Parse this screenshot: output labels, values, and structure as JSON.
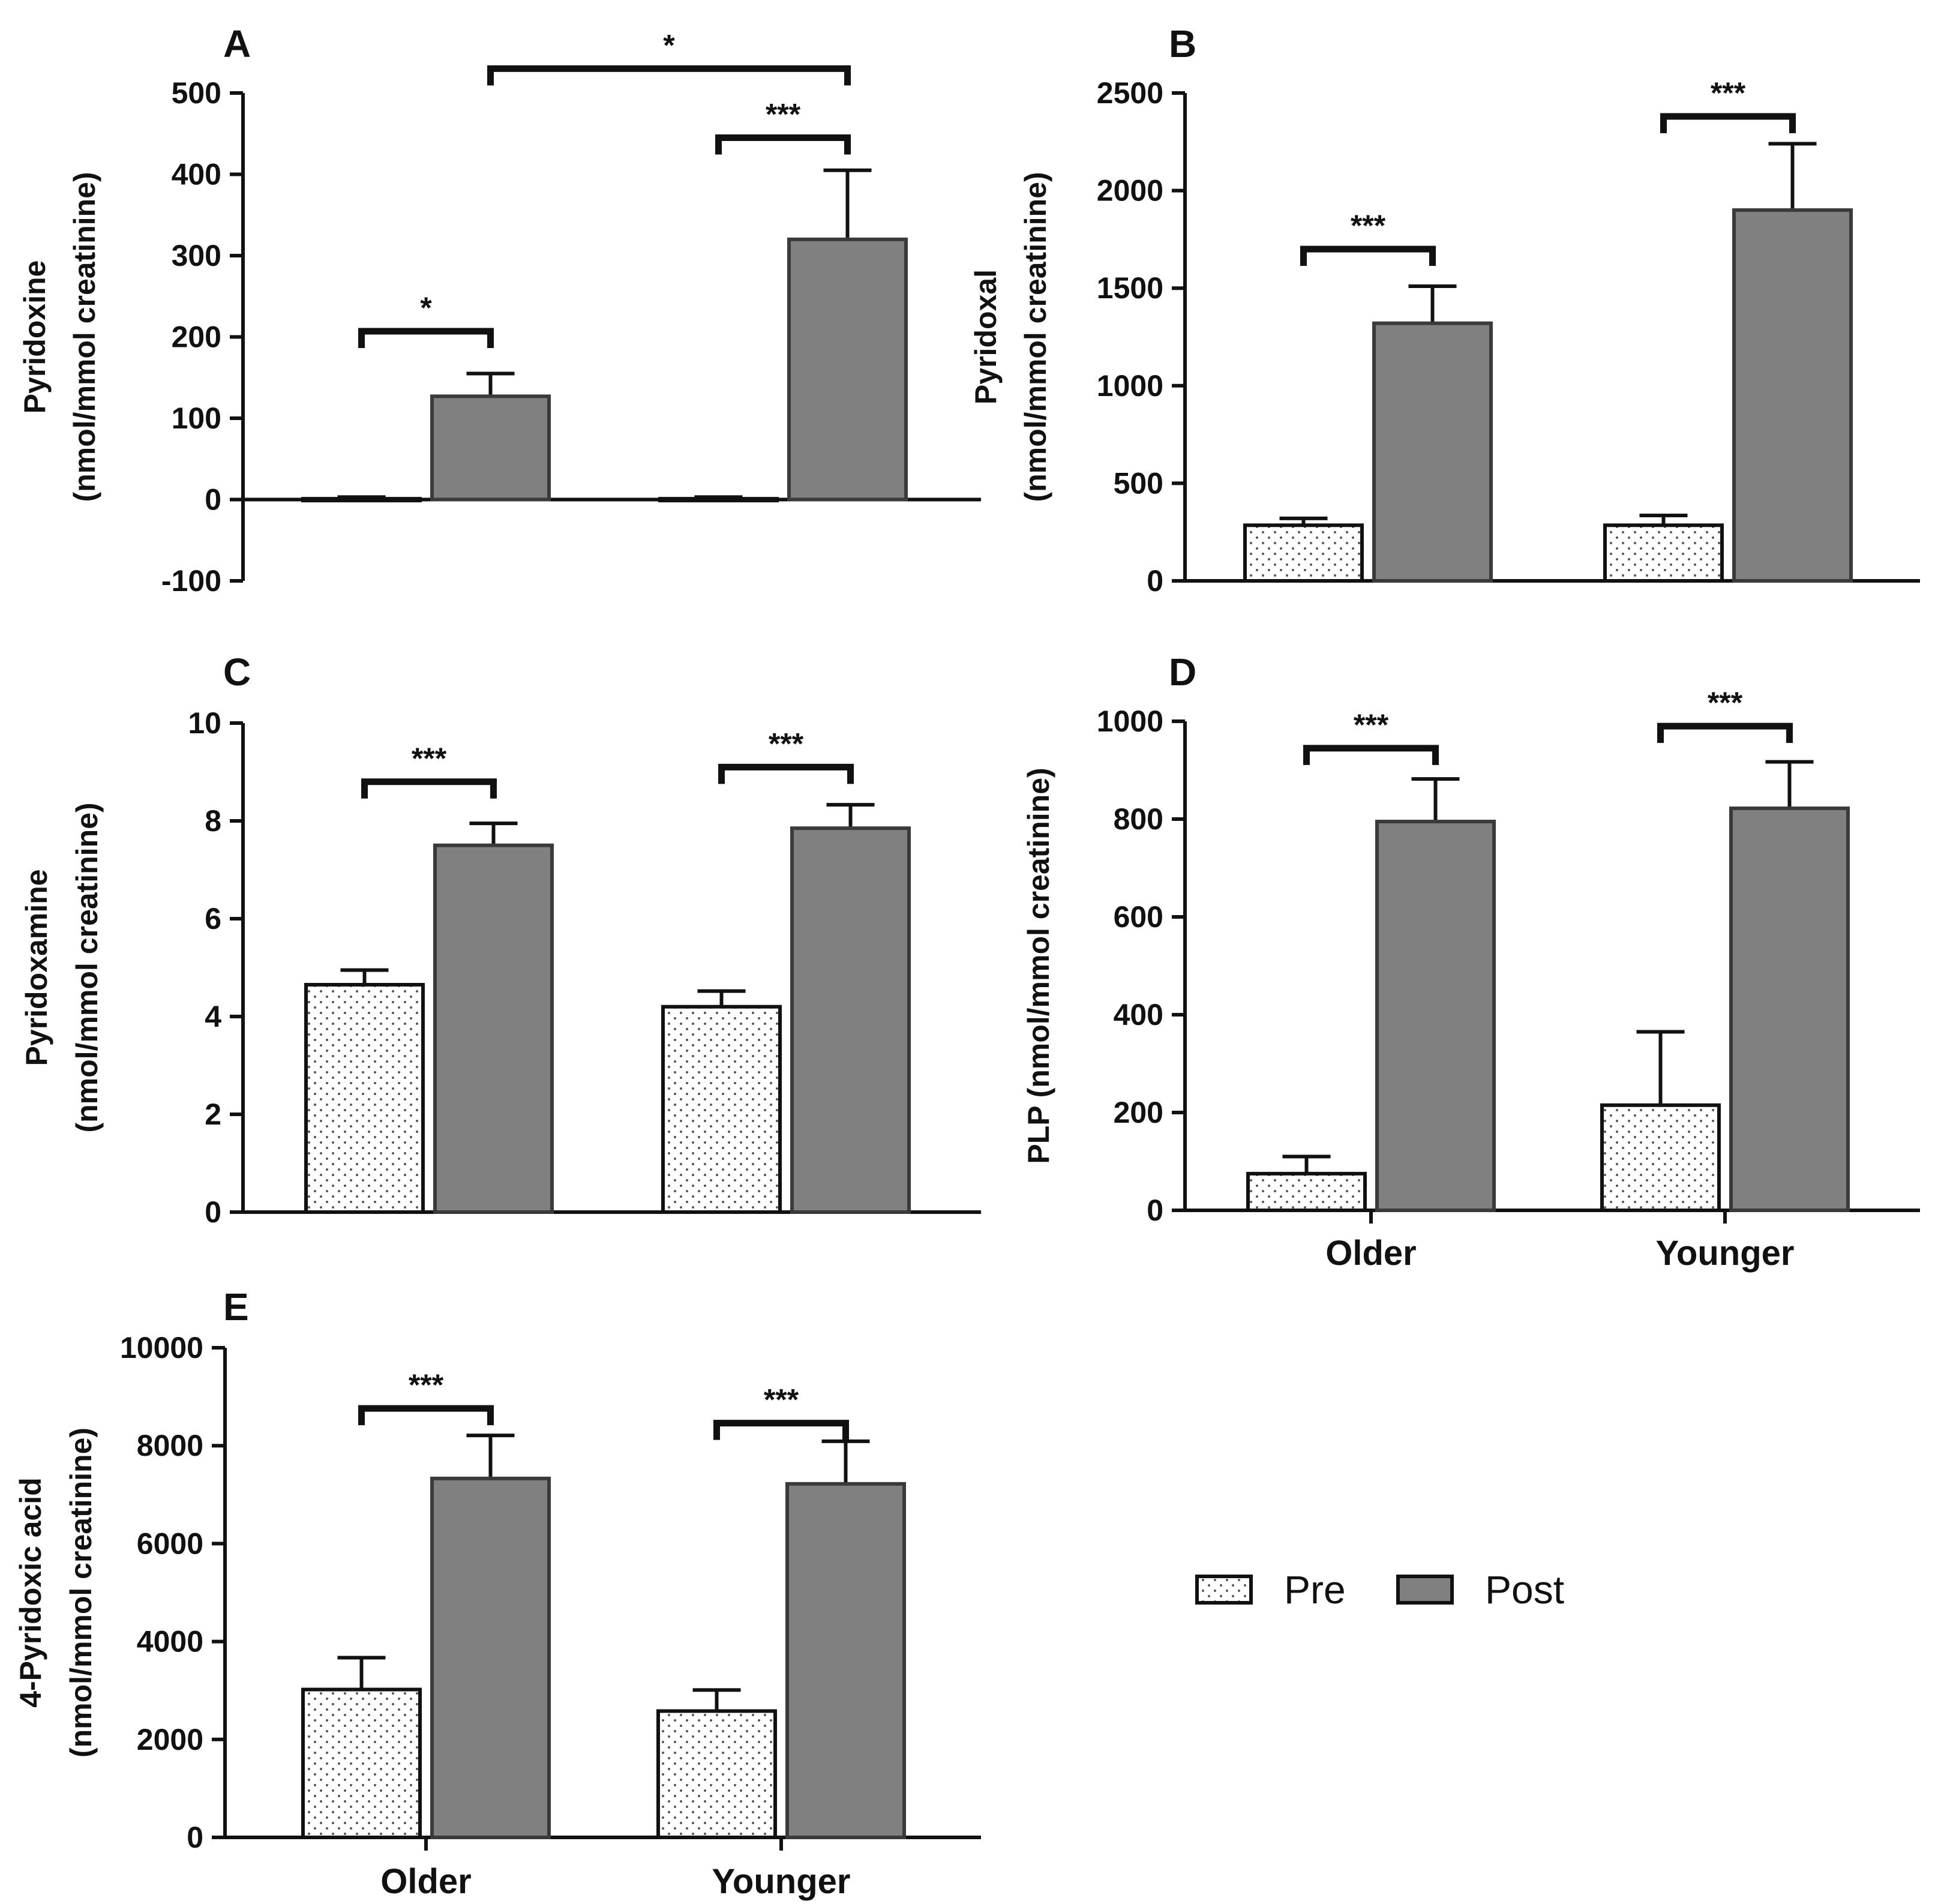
{
  "colors": {
    "pre_fill": "#ffffff",
    "post_fill": "#808080",
    "stroke": "#111111",
    "dots": "#555555"
  },
  "legend": {
    "pre_label": "Pre",
    "post_label": "Post"
  },
  "chart_data": [
    {
      "panel": "A",
      "type": "bar",
      "ylabel_line1": "Pyridoxine",
      "ylabel_line2": "(nmol/mmol creatinine)",
      "categories": [
        "Older",
        "Younger"
      ],
      "show_category_labels": false,
      "ylim": [
        -100,
        500
      ],
      "yticks": [
        -100,
        0,
        100,
        200,
        300,
        400,
        500
      ],
      "series": [
        {
          "name": "Pre",
          "values": [
            1,
            1
          ],
          "errors": [
            2,
            2
          ]
        },
        {
          "name": "Post",
          "values": [
            127,
            320
          ],
          "errors": [
            28,
            85
          ]
        }
      ],
      "significance": [
        {
          "label": "*",
          "from": "Older-Pre",
          "to": "Older-Post",
          "y": 207
        },
        {
          "label": "***",
          "from": "Younger-Pre",
          "to": "Younger-Post",
          "y": 445
        },
        {
          "label": "*",
          "from": "Older-Post",
          "to": "Younger-Post",
          "y": 530
        }
      ]
    },
    {
      "panel": "B",
      "type": "bar",
      "ylabel_line1": "Pyridoxal",
      "ylabel_line2": "(nmol/mmol creatinine)",
      "categories": [
        "Older",
        "Younger"
      ],
      "show_category_labels": false,
      "ylim": [
        0,
        2500
      ],
      "yticks": [
        0,
        500,
        1000,
        1500,
        2000,
        2500
      ],
      "series": [
        {
          "name": "Pre",
          "values": [
            285,
            285
          ],
          "errors": [
            35,
            50
          ]
        },
        {
          "name": "Post",
          "values": [
            1320,
            1900
          ],
          "errors": [
            190,
            340
          ]
        }
      ],
      "significance": [
        {
          "label": "***",
          "from": "Older-Pre",
          "to": "Older-Post",
          "y": 1700
        },
        {
          "label": "***",
          "from": "Younger-Pre",
          "to": "Younger-Post",
          "y": 2380
        }
      ]
    },
    {
      "panel": "C",
      "type": "bar",
      "ylabel_line1": "Pyridoxamine",
      "ylabel_line2": "(nmol/mmol creatinine)",
      "categories": [
        "Older",
        "Younger"
      ],
      "show_category_labels": false,
      "ylim": [
        0,
        10
      ],
      "yticks": [
        0,
        2,
        4,
        6,
        8,
        10
      ],
      "series": [
        {
          "name": "Pre",
          "values": [
            4.65,
            4.2
          ],
          "errors": [
            0.3,
            0.32
          ]
        },
        {
          "name": "Post",
          "values": [
            7.5,
            7.85
          ],
          "errors": [
            0.45,
            0.48
          ]
        }
      ],
      "significance": [
        {
          "label": "***",
          "from": "Older-Pre",
          "to": "Older-Post",
          "y": 8.8
        },
        {
          "label": "***",
          "from": "Younger-Pre",
          "to": "Younger-Post",
          "y": 9.1
        }
      ]
    },
    {
      "panel": "D",
      "type": "bar",
      "ylabel_line1": "PLP (nmol/mmol creatinine)",
      "ylabel_line2": "",
      "categories": [
        "Older",
        "Younger"
      ],
      "show_category_labels": true,
      "ylim": [
        0,
        1000
      ],
      "yticks": [
        0,
        200,
        400,
        600,
        800,
        1000
      ],
      "series": [
        {
          "name": "Pre",
          "values": [
            75,
            215
          ],
          "errors": [
            35,
            150
          ]
        },
        {
          "name": "Post",
          "values": [
            795,
            822
          ],
          "errors": [
            87,
            95
          ]
        }
      ],
      "significance": [
        {
          "label": "***",
          "from": "Older-Pre",
          "to": "Older-Post",
          "y": 945
        },
        {
          "label": "***",
          "from": "Younger-Pre",
          "to": "Younger-Post",
          "y": 990
        }
      ]
    },
    {
      "panel": "E",
      "type": "bar",
      "ylabel_line1": "4-Pyridoxic acid",
      "ylabel_line2": "(nmol/mmol creatinine)",
      "categories": [
        "Older",
        "Younger"
      ],
      "show_category_labels": true,
      "ylim": [
        0,
        10000
      ],
      "yticks": [
        0,
        2000,
        4000,
        6000,
        8000,
        10000
      ],
      "series": [
        {
          "name": "Pre",
          "values": [
            3020,
            2580
          ],
          "errors": [
            650,
            430
          ]
        },
        {
          "name": "Post",
          "values": [
            7330,
            7220
          ],
          "errors": [
            880,
            870
          ]
        }
      ],
      "significance": [
        {
          "label": "***",
          "from": "Older-Pre",
          "to": "Older-Post",
          "y": 8760
        },
        {
          "label": "***",
          "from": "Younger-Pre",
          "to": "Younger-Post",
          "y": 8460
        }
      ]
    }
  ]
}
